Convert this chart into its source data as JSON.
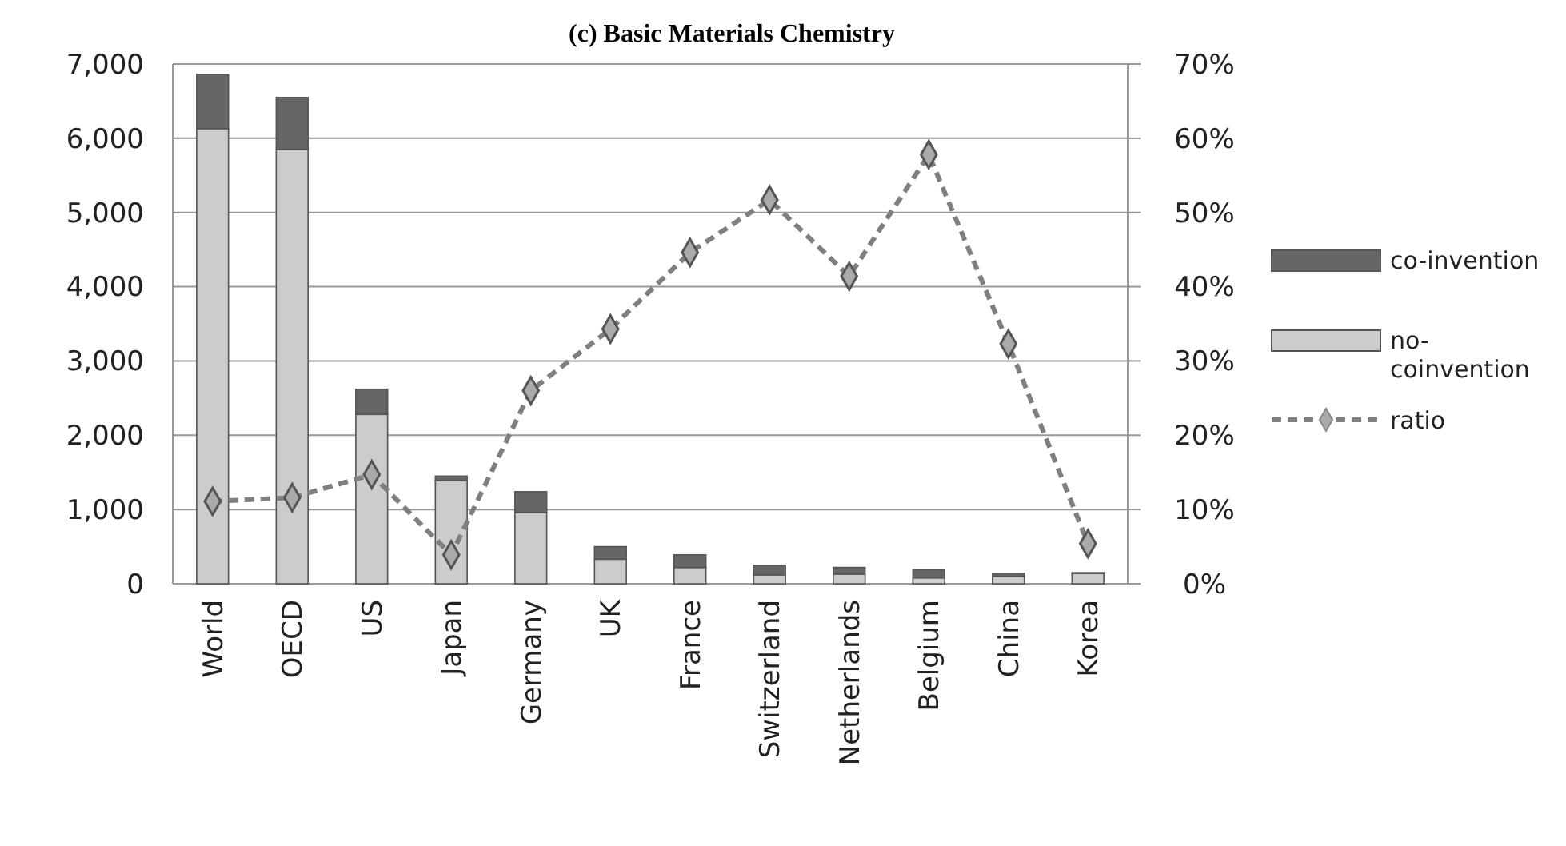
{
  "chart_data": {
    "type": "bar",
    "title": "(c) Basic Materials Chemistry",
    "stacked": true,
    "categories": [
      "World",
      "OECD",
      "US",
      "Japan",
      "Germany",
      "UK",
      "France",
      "Switzerland",
      "Netherlands",
      "Belgium",
      "China",
      "Korea"
    ],
    "series": [
      {
        "name": "no-coinvention",
        "color": "#cccccc",
        "values": [
          6130,
          5850,
          2280,
          1390,
          960,
          330,
          220,
          120,
          130,
          80,
          100,
          140
        ]
      },
      {
        "name": "co-invention",
        "color": "#666666",
        "values": [
          730,
          700,
          340,
          60,
          280,
          170,
          170,
          130,
          90,
          110,
          40,
          10
        ]
      },
      {
        "name": "ratio",
        "type": "line",
        "axis": "y2",
        "color": "#7f7f7f",
        "marker": "diamond",
        "line_style": "dashed",
        "values": [
          11.1,
          11.6,
          14.7,
          3.9,
          26.0,
          34.3,
          44.6,
          51.7,
          41.4,
          57.8,
          32.3,
          5.4
        ]
      }
    ],
    "ylim": [
      0,
      7000
    ],
    "yticks": [
      {
        "value": 0,
        "label": "0"
      },
      {
        "value": 1000,
        "label": "1,000"
      },
      {
        "value": 2000,
        "label": "2,000"
      },
      {
        "value": 3000,
        "label": "3,000"
      },
      {
        "value": 4000,
        "label": "4,000"
      },
      {
        "value": 5000,
        "label": "5,000"
      },
      {
        "value": 6000,
        "label": "6,000"
      },
      {
        "value": 7000,
        "label": "7,000"
      }
    ],
    "y2lim": [
      0,
      70
    ],
    "y2ticks": [
      {
        "value": 0,
        "label": "0%"
      },
      {
        "value": 10,
        "label": "10%"
      },
      {
        "value": 20,
        "label": "20%"
      },
      {
        "value": 30,
        "label": "30%"
      },
      {
        "value": 40,
        "label": "40%"
      },
      {
        "value": 50,
        "label": "50%"
      },
      {
        "value": 60,
        "label": "60%"
      },
      {
        "value": 70,
        "label": "70%"
      }
    ],
    "grid": "y",
    "legend": "right"
  }
}
